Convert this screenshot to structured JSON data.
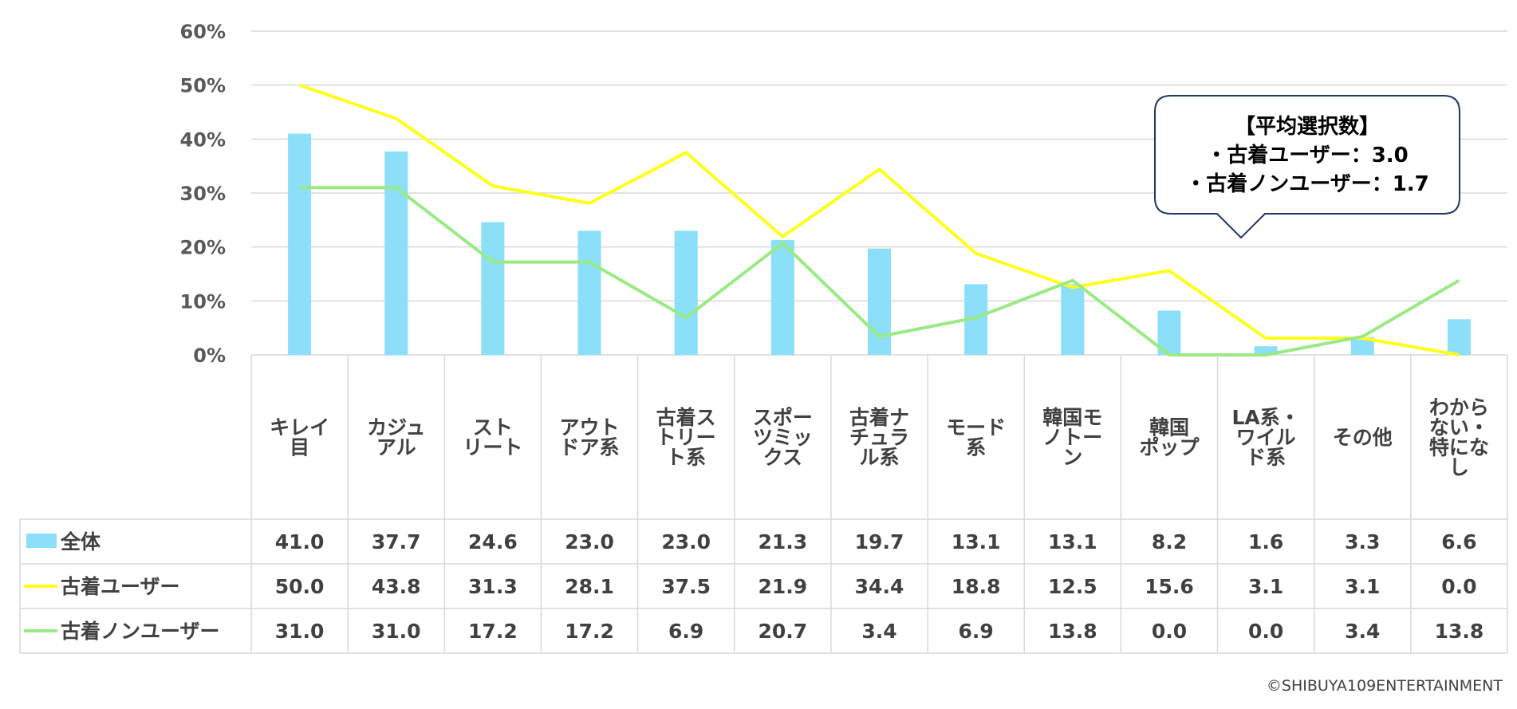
{
  "chart_data": {
    "type": "bar",
    "categories": [
      [
        "キレイ",
        "目"
      ],
      [
        "カジュ",
        "アル"
      ],
      [
        "スト",
        "リート"
      ],
      [
        "アウト",
        "ドア系"
      ],
      [
        "古着ス",
        "トリー",
        "ト系"
      ],
      [
        "スポー",
        "ツミッ",
        "クス"
      ],
      [
        "古着ナ",
        "チュラ",
        "ル系"
      ],
      [
        "モード",
        "系"
      ],
      [
        "韓国モ",
        "ノトー",
        "ン"
      ],
      [
        "韓国",
        "ポップ"
      ],
      [
        "LA系・",
        "ワイル",
        "ド系"
      ],
      [
        "その他"
      ],
      [
        "わから",
        "ない・",
        "特にな",
        "し"
      ]
    ],
    "series": [
      {
        "name": "全体",
        "type": "bar",
        "color": "#8BDFF8",
        "values": [
          41.0,
          37.7,
          24.6,
          23.0,
          23.0,
          21.3,
          19.7,
          13.1,
          13.1,
          8.2,
          1.6,
          3.3,
          6.6
        ]
      },
      {
        "name": "古着ユーザー",
        "type": "line",
        "color": "#FFFF1A",
        "values": [
          50.0,
          43.8,
          31.3,
          28.1,
          37.5,
          21.9,
          34.4,
          18.8,
          12.5,
          15.6,
          3.1,
          3.1,
          0.0
        ]
      },
      {
        "name": "古着ノンユーザー",
        "type": "line",
        "color": "#99EA84",
        "values": [
          31.0,
          31.0,
          17.2,
          17.2,
          6.9,
          20.7,
          3.4,
          6.9,
          13.8,
          0.0,
          0.0,
          3.4,
          13.8
        ]
      }
    ],
    "yticks": [
      "0%",
      "10%",
      "20%",
      "30%",
      "40%",
      "50%",
      "60%"
    ],
    "ylim": [
      0,
      60
    ],
    "grid": true,
    "callout": [
      "【平均選択数】",
      "・古着ユーザー：3.0",
      "・古着ノンユーザー：1.7"
    ],
    "credit": "©SHIBUYA109ENTERTAINMENT"
  }
}
